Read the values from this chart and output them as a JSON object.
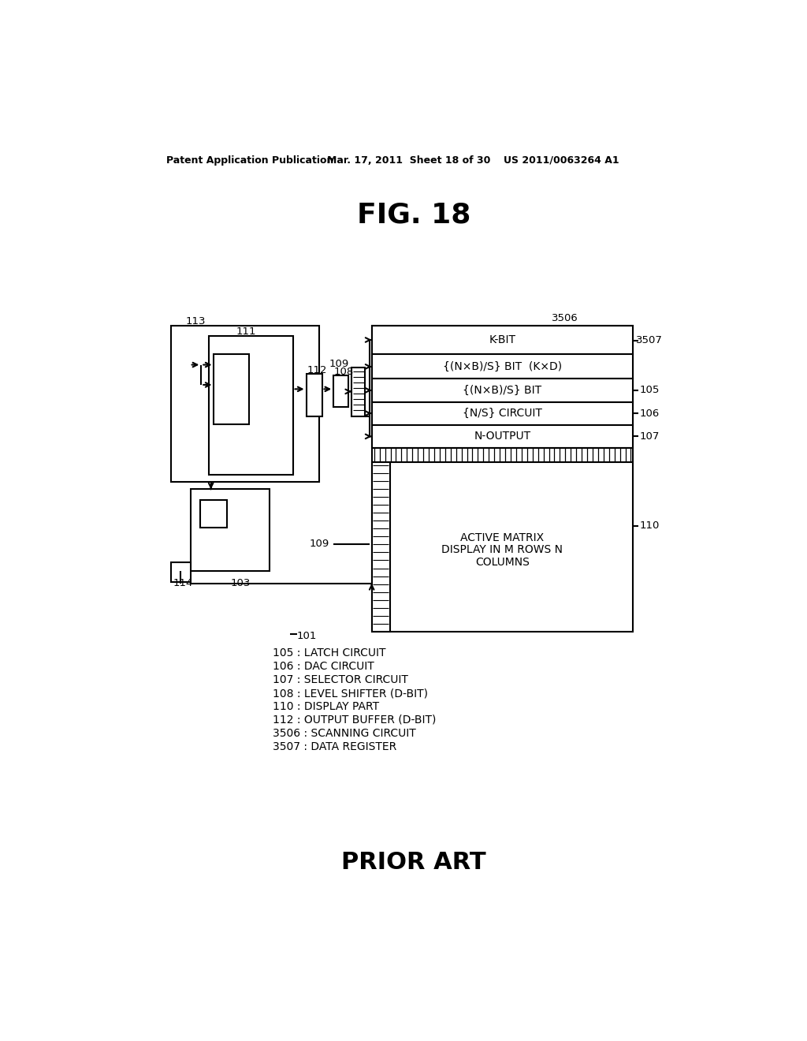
{
  "header_left": "Patent Application Publication",
  "header_center": "Mar. 17, 2011  Sheet 18 of 30",
  "header_right": "US 2011/0063264 A1",
  "title": "FIG. 18",
  "footer": "PRIOR ART",
  "legend_lines": [
    "105 : LATCH CIRCUIT",
    "106 : DAC CIRCUIT",
    "107 : SELECTOR CIRCUIT",
    "108 : LEVEL SHIFTER (D-BIT)",
    "110 : DISPLAY PART",
    "112 : OUTPUT BUFFER (D-BIT)",
    "3506 : SCANNING CIRCUIT",
    "3507 : DATA REGISTER"
  ],
  "bg_color": "#ffffff"
}
